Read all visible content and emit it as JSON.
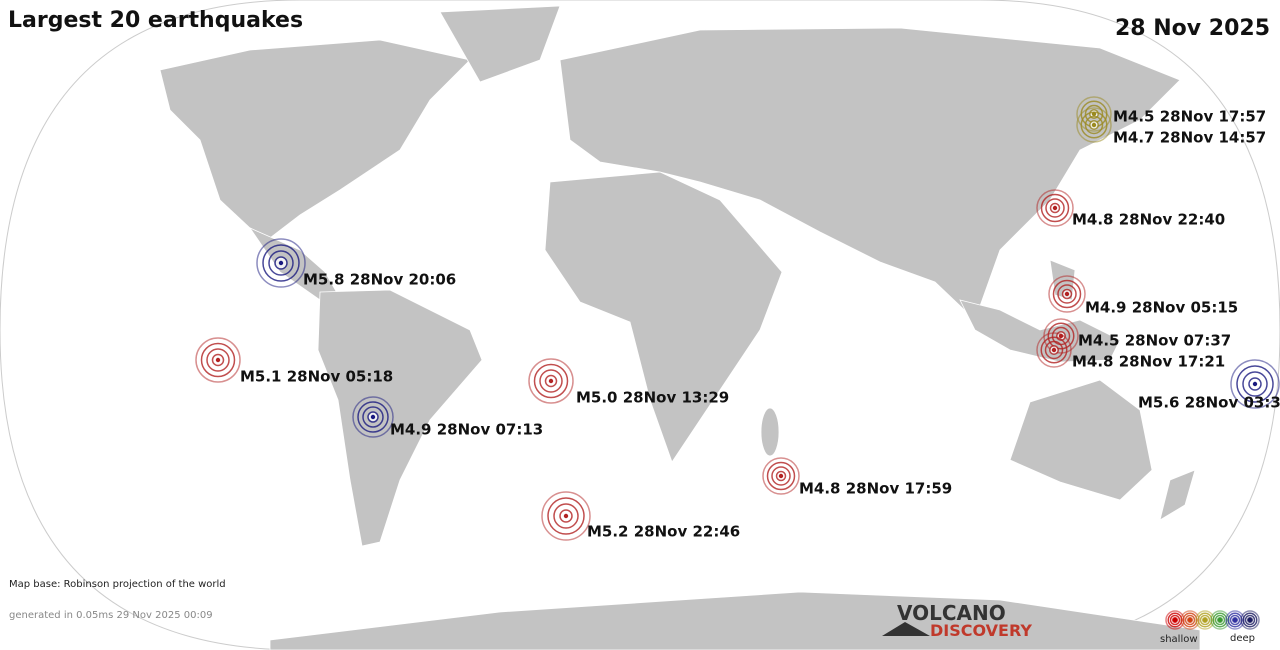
{
  "header": {
    "title": "Largest 20 earthquakes",
    "date": "28 Nov 2025"
  },
  "quakes": [
    {
      "label": "M4.5 28Nov 17:57"
    },
    {
      "label": "M4.7 28Nov 14:57"
    },
    {
      "label": "M4.8 28Nov 22:40"
    },
    {
      "label": "M5.8 28Nov 20:06"
    },
    {
      "label": "M4.9 28Nov 05:15"
    },
    {
      "label": "M4.5 28Nov 07:37"
    },
    {
      "label": "M4.8 28Nov 17:21"
    },
    {
      "label": "M5.1 28Nov 05:18"
    },
    {
      "label": "M5.0 28Nov 13:29"
    },
    {
      "label": "M5.6 28Nov 03:3"
    },
    {
      "label": "M4.9 28Nov 07:13"
    },
    {
      "label": "M4.8 28Nov 17:59"
    },
    {
      "label": "M5.2 28Nov 22:46"
    }
  ],
  "footer": {
    "map_base": "Map base: Robinson projection of the world",
    "generated": "generated in 0.05ms 29 Nov 2025 00:09"
  },
  "logo": {
    "line1": "VOLCANO",
    "line2": "DISCOVERY"
  },
  "legend": {
    "shallow": "shallow",
    "deep": "deep"
  }
}
